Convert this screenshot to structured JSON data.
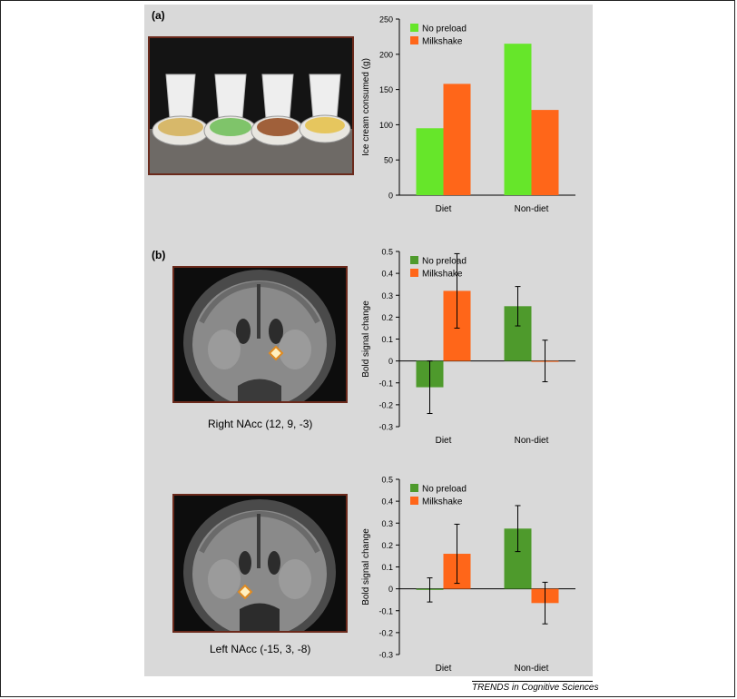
{
  "panels": {
    "a_label": "(a)",
    "b_label": "(b)",
    "right_nacc_caption": "Right NAcc (12, 9, -3)",
    "left_nacc_caption": "Left NAcc (-15, 3, -8)"
  },
  "credit": "TRENDS in Cognitive Sciences",
  "colors": {
    "no_preload_a": "#66e62a",
    "milkshake": "#ff6619",
    "no_preload_b": "#4e9a2c",
    "panel_bg": "#d9d9d9",
    "photo_border": "#6b2a1c"
  },
  "chart_data": [
    {
      "type": "bar",
      "categories": [
        "Diet",
        "Non-diet"
      ],
      "series": [
        {
          "name": "No preload",
          "values": [
            95,
            215
          ]
        },
        {
          "name": "Milkshake",
          "values": [
            158,
            121
          ]
        }
      ],
      "ylabel": "Ice cream consumed (g)",
      "ylim": [
        0,
        250
      ],
      "yticks": [
        "0",
        "50",
        "100",
        "150",
        "200",
        "250"
      ],
      "legend": "top-left"
    },
    {
      "type": "bar",
      "categories": [
        "Diet",
        "Non-diet"
      ],
      "series": [
        {
          "name": "No preload",
          "values": [
            -0.12,
            0.25
          ],
          "errors": [
            0.12,
            0.09
          ]
        },
        {
          "name": "Milkshake",
          "values": [
            0.32,
            0.0
          ],
          "errors": [
            0.17,
            0.095
          ]
        }
      ],
      "ylabel": "Bold signal change",
      "ylim": [
        -0.3,
        0.5
      ],
      "yticks": [
        "0.5",
        "0.4",
        "0.3",
        "0.2",
        "0.1",
        "0",
        "-0.1",
        "-0.2",
        "-0.3"
      ],
      "legend": "top-left"
    },
    {
      "type": "bar",
      "categories": [
        "Diet",
        "Non-diet"
      ],
      "series": [
        {
          "name": "No preload",
          "values": [
            -0.005,
            0.275
          ],
          "errors": [
            0.055,
            0.105
          ]
        },
        {
          "name": "Milkshake",
          "values": [
            0.16,
            -0.065
          ],
          "errors": [
            0.135,
            0.095
          ]
        }
      ],
      "ylabel": "Bold signal change",
      "ylim": [
        -0.3,
        0.5
      ],
      "yticks": [
        "0.5",
        "0.4",
        "0.3",
        "0.2",
        "0.1",
        "0",
        "-0.1",
        "-0.2",
        "-0.3"
      ],
      "legend": "top-left"
    }
  ]
}
